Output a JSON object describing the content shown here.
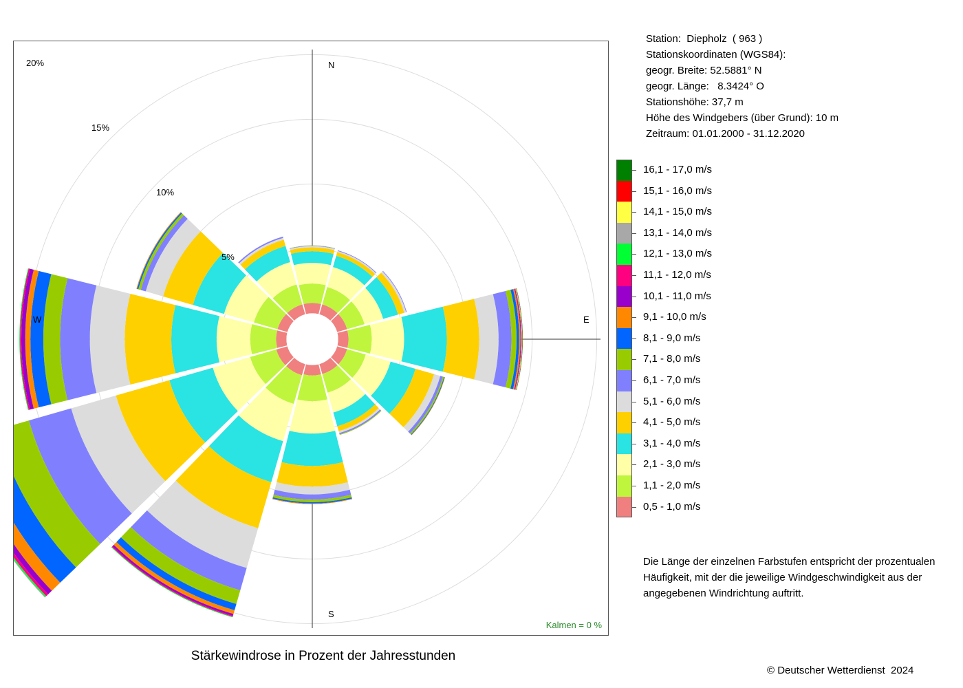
{
  "chart_data": {
    "type": "windrose",
    "title": "Stärkewindrose in Prozent der Jahresstunden",
    "unit": "%",
    "ring_labels": [
      "5%",
      "10%",
      "15%",
      "20%"
    ],
    "ring_values": [
      5,
      10,
      15,
      20
    ],
    "direction_labels": [
      "N",
      "E",
      "S",
      "W"
    ],
    "direction_angles": [
      0,
      30,
      60,
      90,
      120,
      150,
      180,
      210,
      240,
      270,
      300,
      330
    ],
    "speed_classes": [
      {
        "label": "0,5 - 1,0 m/s",
        "color": "#f08080"
      },
      {
        "label": "1,1 - 2,0 m/s",
        "color": "#bff53d"
      },
      {
        "label": "2,1 - 3,0 m/s",
        "color": "#ffffa8"
      },
      {
        "label": "3,1 - 4,0 m/s",
        "color": "#2ae3e3"
      },
      {
        "label": "4,1 - 5,0 m/s",
        "color": "#ffd000"
      },
      {
        "label": "5,1 - 6,0 m/s",
        "color": "#dcdcdc"
      },
      {
        "label": "6,1 - 7,0 m/s",
        "color": "#8080ff"
      },
      {
        "label": "7,1 - 8,0 m/s",
        "color": "#99cc00"
      },
      {
        "label": "8,1 - 9,0 m/s",
        "color": "#0066ff"
      },
      {
        "label": "9,1 - 10,0 m/s",
        "color": "#ff8800"
      },
      {
        "label": "10,1 - 11,0 m/s",
        "color": "#9900cc"
      },
      {
        "label": "11,1 - 12,0 m/s",
        "color": "#ff0080"
      },
      {
        "label": "12,1 - 13,0 m/s",
        "color": "#00ff33"
      },
      {
        "label": "13,1 - 14,0 m/s",
        "color": "#a8a8a8"
      },
      {
        "label": "14,1 - 15,0 m/s",
        "color": "#ffff44"
      },
      {
        "label": "15,1 - 16,0 m/s",
        "color": "#ff0000"
      },
      {
        "label": "16,1 - 17,0 m/s",
        "color": "#008000"
      }
    ],
    "inner_offset": 2.0,
    "sectors": [
      {
        "angle": 0,
        "values": [
          0.8,
          1.5,
          1.6,
          0.9,
          0.3,
          0.1,
          0.03,
          0.02
        ]
      },
      {
        "angle": 30,
        "values": [
          0.8,
          1.4,
          1.6,
          0.9,
          0.3,
          0.1,
          0.05
        ]
      },
      {
        "angle": 60,
        "values": [
          0.8,
          1.4,
          1.5,
          1.2,
          0.5,
          0.15,
          0.05
        ]
      },
      {
        "angle": 90,
        "values": [
          0.8,
          1.8,
          2.5,
          3.3,
          2.5,
          1.5,
          1.0,
          0.4,
          0.2,
          0.1,
          0.05,
          0.03,
          0.02,
          0.02,
          0.02,
          0.02,
          0.02
        ]
      },
      {
        "angle": 120,
        "values": [
          0.8,
          1.5,
          2.0,
          2.0,
          1.5,
          0.5,
          0.2,
          0.1,
          0.05,
          0.03
        ]
      },
      {
        "angle": 150,
        "values": [
          0.8,
          1.5,
          1.6,
          1.1,
          0.4,
          0.15,
          0.1,
          0.05
        ]
      },
      {
        "angle": 180,
        "values": [
          0.8,
          2.0,
          2.5,
          2.5,
          1.6,
          0.6,
          0.4,
          0.2,
          0.1,
          0.05
        ]
      },
      {
        "angle": 210,
        "values": [
          0.9,
          2.3,
          3.0,
          3.3,
          3.7,
          3.2,
          1.8,
          1.1,
          0.5,
          0.3,
          0.15,
          0.07,
          0.05
        ]
      },
      {
        "angle": 240,
        "values": [
          0.9,
          2.1,
          3.0,
          3.5,
          4.3,
          3.6,
          3.4,
          2.6,
          1.7,
          0.9,
          0.4,
          0.2,
          0.1,
          0.05
        ]
      },
      {
        "angle": 270,
        "values": [
          0.8,
          2.0,
          2.6,
          3.5,
          3.6,
          2.7,
          2.3,
          1.3,
          1.0,
          0.4,
          0.3,
          0.1,
          0.05
        ]
      },
      {
        "angle": 300,
        "values": [
          0.8,
          1.9,
          2.4,
          2.5,
          2.4,
          1.4,
          0.4,
          0.2,
          0.1,
          0.05
        ]
      },
      {
        "angle": 330,
        "values": [
          0.8,
          1.6,
          1.8,
          1.3,
          0.5,
          0.15,
          0.1
        ]
      }
    ],
    "calm_label": "Kalmen  =  0 %"
  },
  "station_info": {
    "station": "Station:  Diepholz  ( 963 )",
    "coords_header": "Stationskoordinaten (WGS84):",
    "lat": "geogr. Breite: 52.5881° N",
    "lon": "geogr. Länge:   8.3424° O",
    "height": "Stationshöhe: 37,7 m",
    "anemometer": "Höhe des Windgebers (über Grund): 10 m",
    "period": "Zeitraum: 01.01.2000 - 31.12.2020"
  },
  "note": "Die Länge der einzelnen Farbstufen entspricht der prozentualen Häufigkeit, mit der die jeweilige Windgeschwindigkeit aus der angegebenen Windrichtung auftritt.",
  "copyright": "© Deutscher Wetterdienst  2024"
}
